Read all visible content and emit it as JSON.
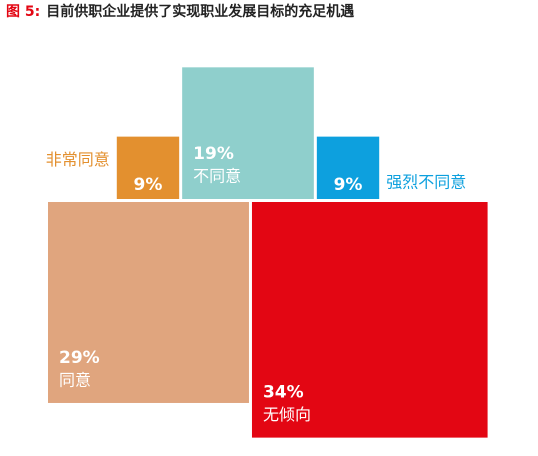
{
  "chart_data": {
    "type": "square",
    "figure_label": "图 5:",
    "title": "目前供职企业提供了实现职业发展目标的充足机遇",
    "categories": [
      "非常同意",
      "不同意",
      "强烈不同意",
      "同意",
      "无倾向"
    ],
    "values": [
      9,
      19,
      9,
      29,
      34
    ],
    "value_labels": [
      "9%",
      "19%",
      "9%",
      "29%",
      "34%"
    ],
    "colors": [
      "#e3902f",
      "#8fcfcc",
      "#0da0de",
      "#e0a57e",
      "#e30613"
    ]
  }
}
